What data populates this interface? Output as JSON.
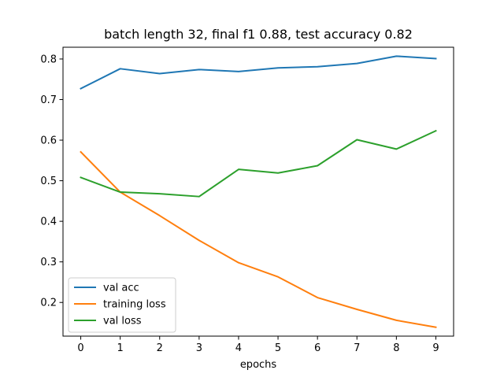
{
  "chart_data": {
    "type": "line",
    "title": "batch length 32, final f1 0.88, test accuracy 0.82",
    "xlabel": "epochs",
    "ylabel": "",
    "x": [
      0,
      1,
      2,
      3,
      4,
      5,
      6,
      7,
      8,
      9
    ],
    "xticks": [
      "0",
      "1",
      "2",
      "3",
      "4",
      "5",
      "6",
      "7",
      "8",
      "9"
    ],
    "xlim": [
      -0.45,
      9.45
    ],
    "yticks": [
      "0.2",
      "0.3",
      "0.4",
      "0.5",
      "0.6",
      "0.7",
      "0.8"
    ],
    "ylim": [
      0.117,
      0.829
    ],
    "grid": false,
    "legend_position": "lower-left",
    "series": [
      {
        "name": "val acc",
        "color": "#1f77b4",
        "values": [
          0.727,
          0.776,
          0.764,
          0.774,
          0.769,
          0.778,
          0.781,
          0.789,
          0.807,
          0.801
        ]
      },
      {
        "name": "training loss",
        "color": "#ff7f0e",
        "values": [
          0.571,
          0.472,
          0.414,
          0.353,
          0.298,
          0.263,
          0.212,
          0.183,
          0.156,
          0.139
        ]
      },
      {
        "name": "val loss",
        "color": "#2ca02c",
        "values": [
          0.508,
          0.472,
          0.468,
          0.461,
          0.528,
          0.519,
          0.537,
          0.601,
          0.578,
          0.623
        ]
      }
    ]
  }
}
